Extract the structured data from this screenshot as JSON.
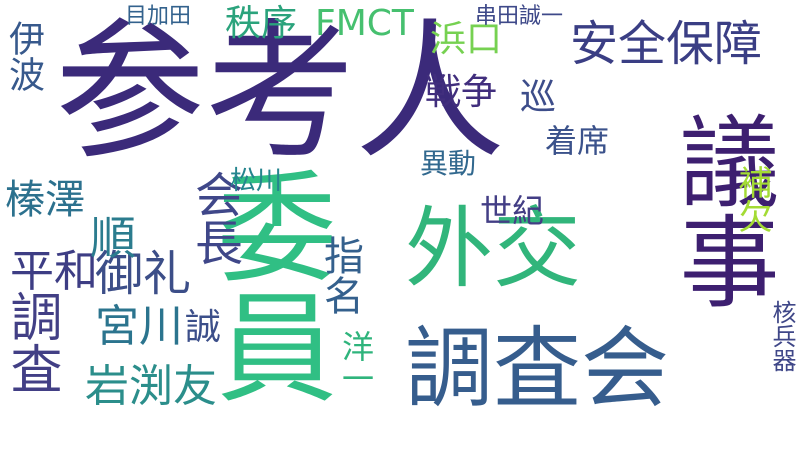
{
  "word_cloud": {
    "words": [
      {
        "text": "参考人",
        "color": "#3b2a7a"
      },
      {
        "text": "委員",
        "color": "#30bf84"
      },
      {
        "text": "外交",
        "color": "#31b57b"
      },
      {
        "text": "調査会",
        "color": "#365d8d"
      },
      {
        "text": "安全保障",
        "color": "#3a3e84"
      },
      {
        "text": "議事",
        "color": "#3d1f70"
      },
      {
        "text": "会長",
        "color": "#3f4789"
      },
      {
        "text": "秩序",
        "color": "#2ba37c"
      },
      {
        "text": "FMCT",
        "color": "#46c06f"
      },
      {
        "text": "戦争",
        "color": "#412e7d"
      },
      {
        "text": "調査",
        "color": "#423f85"
      },
      {
        "text": "岩渕友",
        "color": "#2b8e8b"
      },
      {
        "text": "宮川",
        "color": "#2b748e"
      },
      {
        "text": "御礼",
        "color": "#3c4e88"
      },
      {
        "text": "平和",
        "color": "#3d3d84"
      },
      {
        "text": "榛澤",
        "color": "#2c718e"
      },
      {
        "text": "伊波",
        "color": "#37598c"
      },
      {
        "text": "浜口",
        "color": "#76d151"
      },
      {
        "text": "着席",
        "color": "#3b528b"
      },
      {
        "text": "補欠",
        "color": "#a3db34"
      },
      {
        "text": "巡",
        "color": "#3d4d8a"
      },
      {
        "text": "異動",
        "color": "#31688e"
      },
      {
        "text": "指名",
        "color": "#34608d"
      },
      {
        "text": "誠",
        "color": "#3c4f8a"
      },
      {
        "text": "洋一",
        "color": "#2fb47c"
      },
      {
        "text": "世紀",
        "color": "#433e85"
      },
      {
        "text": "目加田",
        "color": "#33628d"
      },
      {
        "text": "串田誠一",
        "color": "#3e4989"
      },
      {
        "text": "松川",
        "color": "#25858e"
      },
      {
        "text": "順",
        "color": "#2b7c8e"
      },
      {
        "text": "核兵器",
        "color": "#3f4788"
      }
    ]
  }
}
